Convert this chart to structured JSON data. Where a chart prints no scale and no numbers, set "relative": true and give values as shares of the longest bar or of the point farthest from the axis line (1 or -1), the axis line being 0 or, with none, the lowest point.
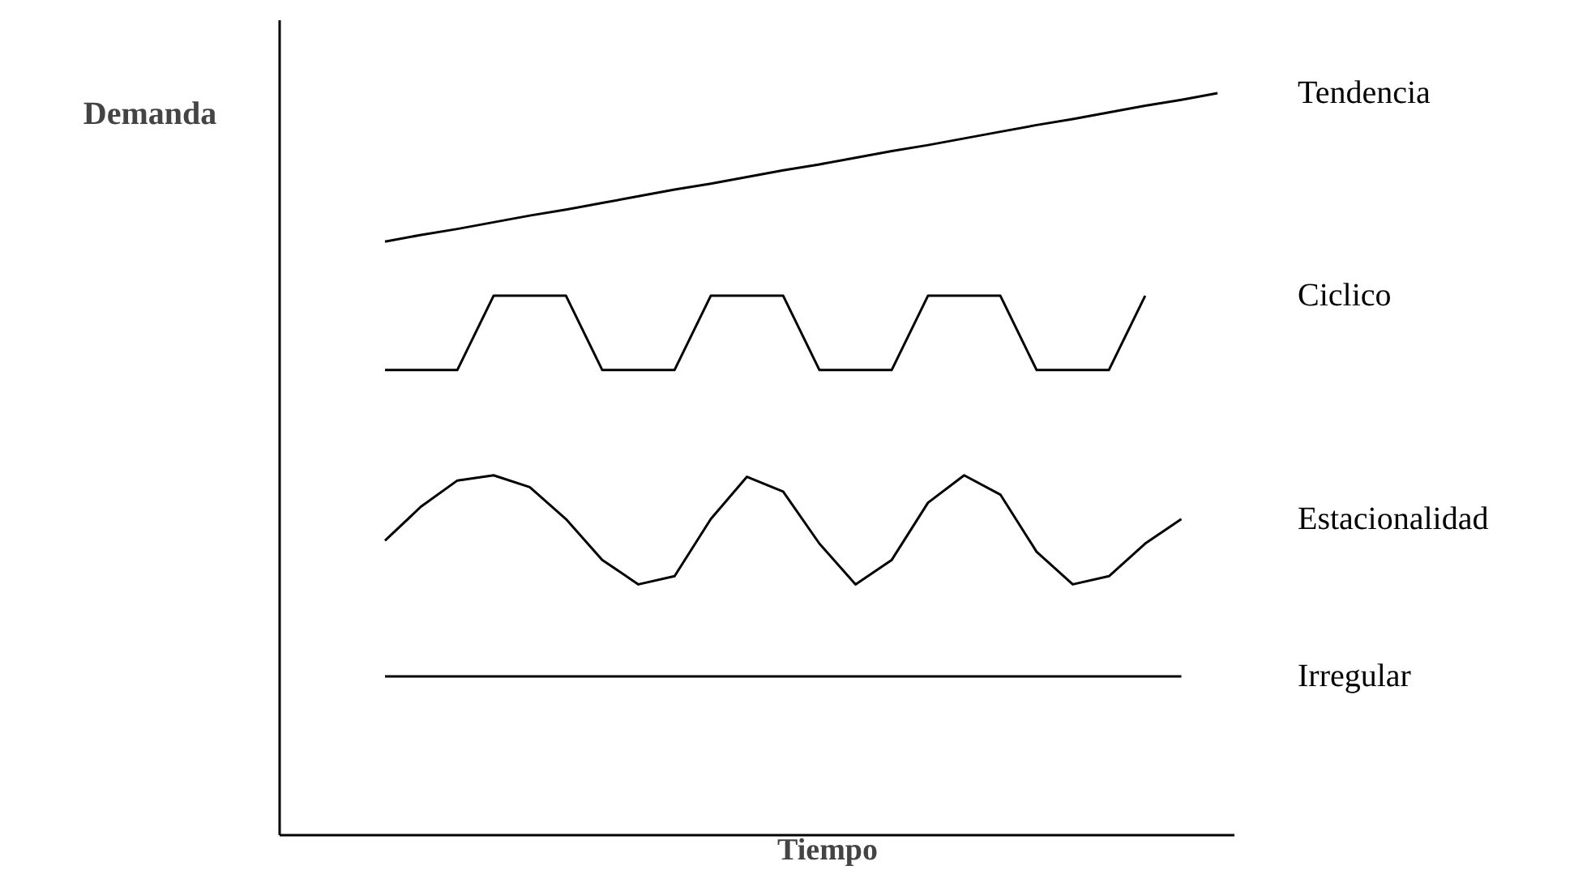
{
  "chart_data": {
    "type": "line",
    "relative": true,
    "xlabel": "Tiempo",
    "ylabel": "Demanda",
    "line_style": "solid",
    "categories": [
      null,
      null,
      null,
      null,
      null,
      null,
      null,
      null,
      null,
      null,
      null,
      null,
      null,
      null,
      null,
      null,
      null,
      null,
      null,
      null,
      null,
      null,
      null,
      null
    ],
    "series": [
      {
        "name": "Tendencia",
        "color": "#000000",
        "values": [
          0.8,
          0.809,
          0.817,
          0.826,
          0.835,
          0.843,
          0.852,
          0.861,
          0.87,
          0.878,
          0.887,
          0.896,
          0.904,
          0.913,
          0.922,
          0.93,
          0.939,
          0.948,
          0.957,
          0.965,
          0.974,
          0.983,
          0.991,
          1.0
        ]
      },
      {
        "name": "Ciclico",
        "color": "#000000",
        "values": [
          0.627,
          0.627,
          0.627,
          0.727,
          0.727,
          0.727,
          0.627,
          0.627,
          0.627,
          0.727,
          0.727,
          0.727,
          0.627,
          0.627,
          0.627,
          0.727,
          0.727,
          0.727,
          0.627,
          0.627,
          0.627,
          0.727,
          null,
          null
        ]
      },
      {
        "name": "Estacionalidad",
        "color": "#000000",
        "values": [
          0.397,
          0.443,
          0.478,
          0.485,
          0.469,
          0.426,
          0.371,
          0.338,
          0.349,
          0.426,
          0.483,
          0.463,
          0.393,
          0.338,
          0.371,
          0.448,
          0.485,
          0.459,
          0.382,
          0.338,
          0.349,
          0.393,
          0.426,
          null
        ]
      },
      {
        "name": "Irregular",
        "color": "#000000",
        "values": [
          0.214,
          0.214,
          0.214,
          0.214,
          0.214,
          0.214,
          0.214,
          0.214,
          0.214,
          0.214,
          0.214,
          0.214,
          0.214,
          0.214,
          0.214,
          0.214,
          0.214,
          0.214,
          0.214,
          0.214,
          0.214,
          0.214,
          0.214,
          null
        ]
      }
    ]
  }
}
